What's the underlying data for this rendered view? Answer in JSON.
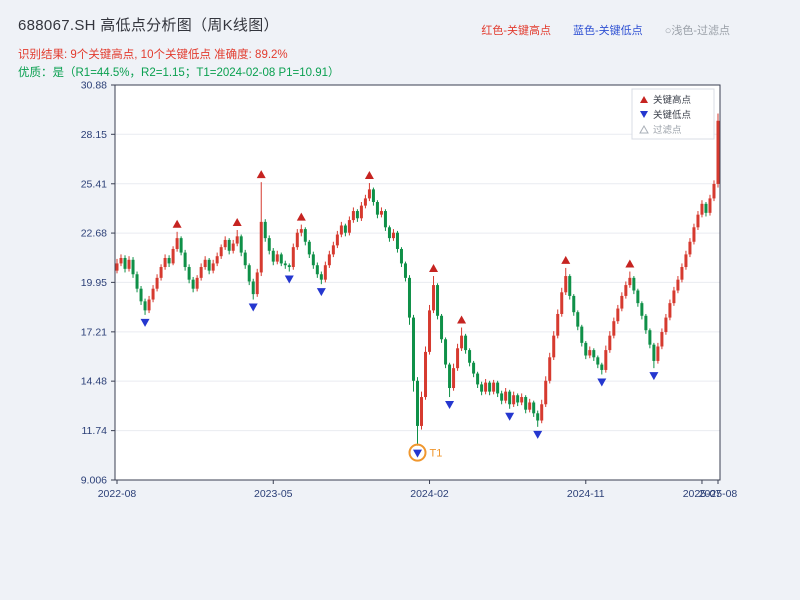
{
  "header": {
    "title": "688067.SH 高低点分析图（周K线图）",
    "legend_high": "红色-关键高点",
    "legend_low": "蓝色-关键低点",
    "legend_filter": "○浅色-过滤点",
    "result_line": "识别结果: 9个关键高点, 10个关键低点  准确度: 89.2%",
    "quality_line": "优质：是（R1=44.5%，R2=1.15；T1=2024-02-08 P1=10.91）"
  },
  "stats": {
    "key_high_count": 9,
    "key_low_count": 10,
    "accuracy": "89.2%",
    "premium": "是",
    "R1": "44.5%",
    "R2": "1.15",
    "T1_date": "2024-02-08",
    "P1": "10.91"
  },
  "colors": {
    "up": "#d63a2f",
    "down": "#0f9048",
    "key_high": "#c62421",
    "key_low": "#2537cf",
    "filter": "#aab0b8",
    "t1": "#f0972e",
    "axis": "#3a3f52",
    "tick_text": "#2b3f77",
    "grid": "#e9ebf1",
    "gray_text": "#9aa0a8",
    "plot_bg": "#ffffff"
  },
  "chart_data": {
    "type": "candlestick",
    "title": "688067.SH 周K线 高低点分析",
    "xlabel": "",
    "ylabel": "",
    "grid": true,
    "legend_position": "top-right-inside",
    "ylim": [
      9.006,
      30.88
    ],
    "yticks": [
      30.88,
      28.15,
      25.41,
      22.68,
      19.95,
      17.21,
      14.48,
      11.74,
      9.006
    ],
    "xticks": [
      {
        "i": 0,
        "label": "2022-08"
      },
      {
        "i": 39,
        "label": "2023-05"
      },
      {
        "i": 78,
        "label": "2024-02"
      },
      {
        "i": 117,
        "label": "2024-11"
      },
      {
        "i": 146,
        "label": "2025-07"
      },
      {
        "i": 150,
        "label": "2025-08"
      }
    ],
    "legend_items": [
      {
        "label": "关键高点",
        "type": "high"
      },
      {
        "label": "关键低点",
        "type": "low"
      },
      {
        "label": "过滤点",
        "type": "filter"
      }
    ],
    "candles": [
      [
        20.6,
        21.25,
        20.45,
        21.0
      ],
      [
        21.0,
        21.5,
        20.85,
        21.3
      ],
      [
        21.3,
        21.45,
        20.5,
        20.7
      ],
      [
        20.7,
        21.4,
        20.55,
        21.2
      ],
      [
        21.2,
        21.35,
        20.2,
        20.4
      ],
      [
        20.4,
        20.55,
        19.4,
        19.6
      ],
      [
        19.6,
        19.75,
        18.7,
        18.9
      ],
      [
        18.9,
        19.05,
        18.15,
        18.4
      ],
      [
        18.4,
        19.2,
        18.25,
        19.0
      ],
      [
        19.0,
        19.8,
        18.85,
        19.6
      ],
      [
        19.6,
        20.4,
        19.45,
        20.2
      ],
      [
        20.2,
        20.95,
        20.05,
        20.8
      ],
      [
        20.8,
        21.5,
        20.65,
        21.3
      ],
      [
        21.3,
        21.45,
        20.8,
        21.0
      ],
      [
        21.0,
        21.95,
        20.9,
        21.8
      ],
      [
        21.8,
        22.75,
        21.65,
        22.4
      ],
      [
        22.4,
        22.5,
        21.45,
        21.6
      ],
      [
        21.6,
        21.75,
        20.6,
        20.8
      ],
      [
        20.8,
        20.95,
        19.9,
        20.1
      ],
      [
        20.1,
        20.25,
        19.4,
        19.6
      ],
      [
        19.6,
        20.35,
        19.45,
        20.2
      ],
      [
        20.2,
        21.0,
        20.05,
        20.8
      ],
      [
        20.8,
        21.4,
        20.65,
        21.2
      ],
      [
        21.2,
        21.3,
        20.4,
        20.6
      ],
      [
        20.6,
        21.2,
        20.45,
        21.0
      ],
      [
        21.0,
        21.6,
        20.85,
        21.4
      ],
      [
        21.4,
        22.05,
        21.25,
        21.9
      ],
      [
        21.9,
        22.5,
        21.75,
        22.3
      ],
      [
        22.3,
        22.4,
        21.5,
        21.7
      ],
      [
        21.7,
        22.3,
        21.55,
        22.1
      ],
      [
        22.1,
        22.85,
        21.95,
        22.5
      ],
      [
        22.5,
        22.6,
        21.4,
        21.6
      ],
      [
        21.6,
        21.75,
        20.7,
        20.9
      ],
      [
        20.9,
        21.0,
        19.8,
        20.0
      ],
      [
        20.0,
        20.15,
        19.0,
        19.3
      ],
      [
        19.3,
        20.7,
        19.15,
        20.5
      ],
      [
        20.5,
        25.5,
        20.3,
        23.3
      ],
      [
        23.3,
        23.45,
        22.2,
        22.4
      ],
      [
        22.4,
        22.55,
        21.5,
        21.7
      ],
      [
        21.7,
        21.85,
        20.9,
        21.1
      ],
      [
        21.1,
        21.7,
        20.95,
        21.5
      ],
      [
        21.5,
        21.6,
        20.85,
        21.0
      ],
      [
        21.0,
        21.15,
        20.7,
        20.9
      ],
      [
        20.9,
        21.0,
        20.55,
        20.8
      ],
      [
        20.8,
        22.1,
        20.65,
        21.9
      ],
      [
        21.9,
        22.9,
        21.75,
        22.7
      ],
      [
        22.7,
        23.15,
        22.5,
        22.9
      ],
      [
        22.9,
        23.0,
        22.0,
        22.2
      ],
      [
        22.2,
        22.3,
        21.3,
        21.5
      ],
      [
        21.5,
        21.65,
        20.7,
        20.9
      ],
      [
        20.9,
        21.05,
        20.2,
        20.4
      ],
      [
        20.4,
        20.55,
        19.85,
        20.1
      ],
      [
        20.1,
        21.1,
        19.95,
        20.9
      ],
      [
        20.9,
        21.7,
        20.75,
        21.5
      ],
      [
        21.5,
        22.2,
        21.35,
        22.0
      ],
      [
        22.0,
        22.8,
        21.85,
        22.6
      ],
      [
        22.6,
        23.3,
        22.45,
        23.1
      ],
      [
        23.1,
        23.2,
        22.5,
        22.7
      ],
      [
        22.7,
        23.6,
        22.55,
        23.4
      ],
      [
        23.4,
        24.1,
        23.25,
        23.9
      ],
      [
        23.9,
        24.0,
        23.3,
        23.5
      ],
      [
        23.5,
        24.4,
        23.35,
        24.2
      ],
      [
        24.2,
        24.8,
        24.05,
        24.6
      ],
      [
        24.6,
        25.45,
        24.45,
        25.1
      ],
      [
        25.1,
        25.2,
        24.2,
        24.4
      ],
      [
        24.4,
        24.5,
        23.5,
        23.7
      ],
      [
        23.7,
        24.1,
        23.55,
        23.9
      ],
      [
        23.9,
        24.0,
        22.8,
        23.0
      ],
      [
        23.0,
        23.1,
        22.2,
        22.4
      ],
      [
        22.4,
        22.9,
        22.25,
        22.7
      ],
      [
        22.7,
        22.8,
        21.6,
        21.8
      ],
      [
        21.8,
        21.9,
        20.8,
        21.0
      ],
      [
        21.0,
        21.1,
        20.0,
        20.2
      ],
      [
        20.2,
        20.35,
        17.6,
        18.0
      ],
      [
        18.0,
        18.15,
        13.9,
        14.5
      ],
      [
        14.5,
        14.7,
        10.91,
        12.0
      ],
      [
        12.0,
        13.9,
        11.8,
        13.6
      ],
      [
        13.6,
        16.4,
        13.45,
        16.1
      ],
      [
        16.1,
        18.7,
        15.95,
        18.4
      ],
      [
        18.4,
        20.3,
        18.25,
        19.8
      ],
      [
        19.8,
        19.9,
        17.9,
        18.1
      ],
      [
        18.1,
        18.2,
        16.6,
        16.8
      ],
      [
        16.8,
        16.9,
        15.2,
        15.4
      ],
      [
        15.4,
        15.5,
        13.6,
        14.1
      ],
      [
        14.1,
        15.45,
        13.95,
        15.2
      ],
      [
        15.2,
        16.55,
        15.05,
        16.3
      ],
      [
        16.3,
        17.45,
        16.15,
        17.0
      ],
      [
        17.0,
        17.1,
        16.0,
        16.2
      ],
      [
        16.2,
        16.3,
        15.3,
        15.5
      ],
      [
        15.5,
        15.6,
        14.7,
        14.9
      ],
      [
        14.9,
        15.0,
        14.1,
        14.3
      ],
      [
        14.3,
        14.45,
        13.7,
        13.9
      ],
      [
        13.9,
        14.6,
        13.75,
        14.4
      ],
      [
        14.4,
        14.5,
        13.7,
        13.9
      ],
      [
        13.9,
        14.55,
        13.75,
        14.4
      ],
      [
        14.4,
        14.5,
        13.6,
        13.8
      ],
      [
        13.8,
        13.95,
        13.2,
        13.4
      ],
      [
        13.4,
        14.1,
        13.25,
        13.9
      ],
      [
        13.9,
        14.0,
        12.95,
        13.2
      ],
      [
        13.2,
        13.9,
        13.05,
        13.7
      ],
      [
        13.7,
        13.8,
        13.1,
        13.3
      ],
      [
        13.3,
        13.8,
        13.15,
        13.6
      ],
      [
        13.6,
        13.7,
        12.7,
        12.9
      ],
      [
        12.9,
        13.5,
        12.75,
        13.3
      ],
      [
        13.3,
        13.4,
        12.5,
        12.7
      ],
      [
        12.7,
        12.85,
        11.95,
        12.3
      ],
      [
        12.3,
        13.45,
        12.15,
        13.2
      ],
      [
        13.2,
        14.75,
        13.05,
        14.5
      ],
      [
        14.5,
        16.05,
        14.35,
        15.8
      ],
      [
        15.8,
        17.25,
        15.65,
        17.0
      ],
      [
        17.0,
        18.45,
        16.85,
        18.2
      ],
      [
        18.2,
        19.65,
        18.05,
        19.4
      ],
      [
        19.4,
        20.75,
        19.25,
        20.3
      ],
      [
        20.3,
        20.4,
        19.0,
        19.2
      ],
      [
        19.2,
        19.3,
        18.1,
        18.3
      ],
      [
        18.3,
        18.4,
        17.3,
        17.5
      ],
      [
        17.5,
        17.6,
        16.4,
        16.6
      ],
      [
        16.6,
        16.7,
        15.7,
        15.9
      ],
      [
        15.9,
        16.4,
        15.75,
        16.2
      ],
      [
        16.2,
        16.3,
        15.6,
        15.8
      ],
      [
        15.8,
        15.9,
        15.2,
        15.4
      ],
      [
        15.4,
        15.5,
        14.85,
        15.1
      ],
      [
        15.1,
        16.45,
        14.95,
        16.2
      ],
      [
        16.2,
        17.25,
        16.05,
        17.0
      ],
      [
        17.0,
        18.0,
        16.85,
        17.8
      ],
      [
        17.8,
        18.7,
        17.65,
        18.5
      ],
      [
        18.5,
        19.4,
        18.35,
        19.2
      ],
      [
        19.2,
        20.0,
        19.05,
        19.8
      ],
      [
        19.8,
        20.55,
        19.65,
        20.2
      ],
      [
        20.2,
        20.3,
        19.3,
        19.5
      ],
      [
        19.5,
        19.6,
        18.6,
        18.8
      ],
      [
        18.8,
        18.9,
        17.9,
        18.1
      ],
      [
        18.1,
        18.2,
        17.1,
        17.3
      ],
      [
        17.3,
        17.4,
        16.3,
        16.5
      ],
      [
        16.5,
        16.6,
        15.2,
        15.6
      ],
      [
        15.6,
        16.6,
        15.45,
        16.4
      ],
      [
        16.4,
        17.4,
        16.25,
        17.2
      ],
      [
        17.2,
        18.2,
        17.05,
        18.0
      ],
      [
        18.0,
        19.0,
        17.85,
        18.8
      ],
      [
        18.8,
        19.7,
        18.65,
        19.5
      ],
      [
        19.5,
        20.3,
        19.35,
        20.1
      ],
      [
        20.1,
        21.0,
        19.95,
        20.8
      ],
      [
        20.8,
        21.7,
        20.65,
        21.5
      ],
      [
        21.5,
        22.4,
        21.35,
        22.2
      ],
      [
        22.2,
        23.2,
        22.05,
        23.0
      ],
      [
        23.0,
        23.9,
        22.85,
        23.7
      ],
      [
        23.7,
        24.5,
        23.55,
        24.3
      ],
      [
        24.3,
        24.4,
        23.6,
        23.8
      ],
      [
        23.8,
        24.8,
        23.65,
        24.6
      ],
      [
        24.6,
        25.6,
        24.45,
        25.4
      ],
      [
        25.4,
        29.3,
        25.2,
        28.9
      ]
    ],
    "key_highs": [
      {
        "i": 15,
        "price": 22.75
      },
      {
        "i": 30,
        "price": 22.85
      },
      {
        "i": 36,
        "price": 25.5
      },
      {
        "i": 46,
        "price": 23.15
      },
      {
        "i": 63,
        "price": 25.45
      },
      {
        "i": 79,
        "price": 20.3
      },
      {
        "i": 86,
        "price": 17.45
      },
      {
        "i": 112,
        "price": 20.75
      },
      {
        "i": 128,
        "price": 20.55
      }
    ],
    "key_lows": [
      {
        "i": 7,
        "price": 18.15
      },
      {
        "i": 34,
        "price": 19.0
      },
      {
        "i": 43,
        "price": 20.55
      },
      {
        "i": 51,
        "price": 19.85
      },
      {
        "i": 75,
        "price": 10.91
      },
      {
        "i": 83,
        "price": 13.6
      },
      {
        "i": 98,
        "price": 12.95
      },
      {
        "i": 105,
        "price": 11.95
      },
      {
        "i": 121,
        "price": 14.85
      },
      {
        "i": 134,
        "price": 15.2
      }
    ],
    "t1": {
      "i": 75,
      "price": 10.91,
      "label": "T1",
      "date": "2024-02-08"
    }
  }
}
